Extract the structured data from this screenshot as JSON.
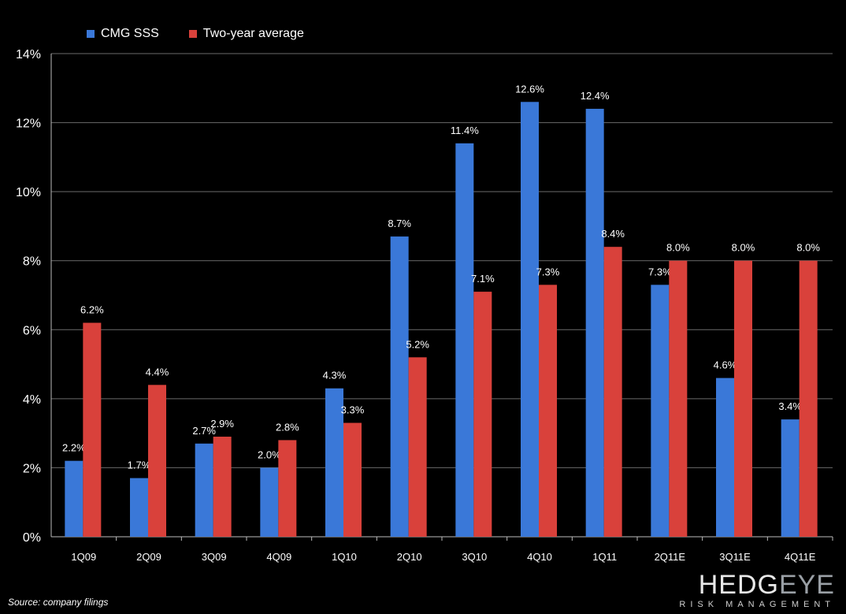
{
  "chart_data": {
    "type": "bar",
    "categories": [
      "1Q09",
      "2Q09",
      "3Q09",
      "4Q09",
      "1Q10",
      "2Q10",
      "3Q10",
      "4Q10",
      "1Q11",
      "2Q11E",
      "3Q11E",
      "4Q11E"
    ],
    "series": [
      {
        "name": "CMG SSS",
        "color": "#3a78d8",
        "values": [
          2.2,
          1.7,
          2.7,
          2.0,
          4.3,
          8.7,
          11.4,
          12.6,
          12.4,
          7.3,
          4.6,
          3.4
        ],
        "labels": [
          "2.2%",
          "1.7%",
          "2.7%",
          "2.0%",
          "4.3%",
          "8.7%",
          "11.4%",
          "12.6%",
          "12.4%",
          "7.3%",
          "4.6%",
          "3.4%"
        ]
      },
      {
        "name": "Two-year average",
        "color": "#d9413b",
        "values": [
          6.2,
          4.4,
          2.9,
          2.8,
          3.3,
          5.2,
          7.1,
          7.3,
          8.4,
          8.0,
          8.0,
          8.0
        ],
        "labels": [
          "6.2%",
          "4.4%",
          "2.9%",
          "2.8%",
          "3.3%",
          "5.2%",
          "7.1%",
          "7.3%",
          "8.4%",
          "8.0%",
          "8.0%",
          "8.0%"
        ]
      }
    ],
    "ylim": [
      0,
      14
    ],
    "yticks": [
      "0%",
      "2%",
      "4%",
      "6%",
      "8%",
      "10%",
      "12%",
      "14%"
    ],
    "grid": true,
    "legend": "top-left"
  },
  "source": "Source: company filings",
  "logo": {
    "main_a": "HEDG",
    "main_b": "EYE",
    "sub": "RISK MANAGEMENT"
  }
}
